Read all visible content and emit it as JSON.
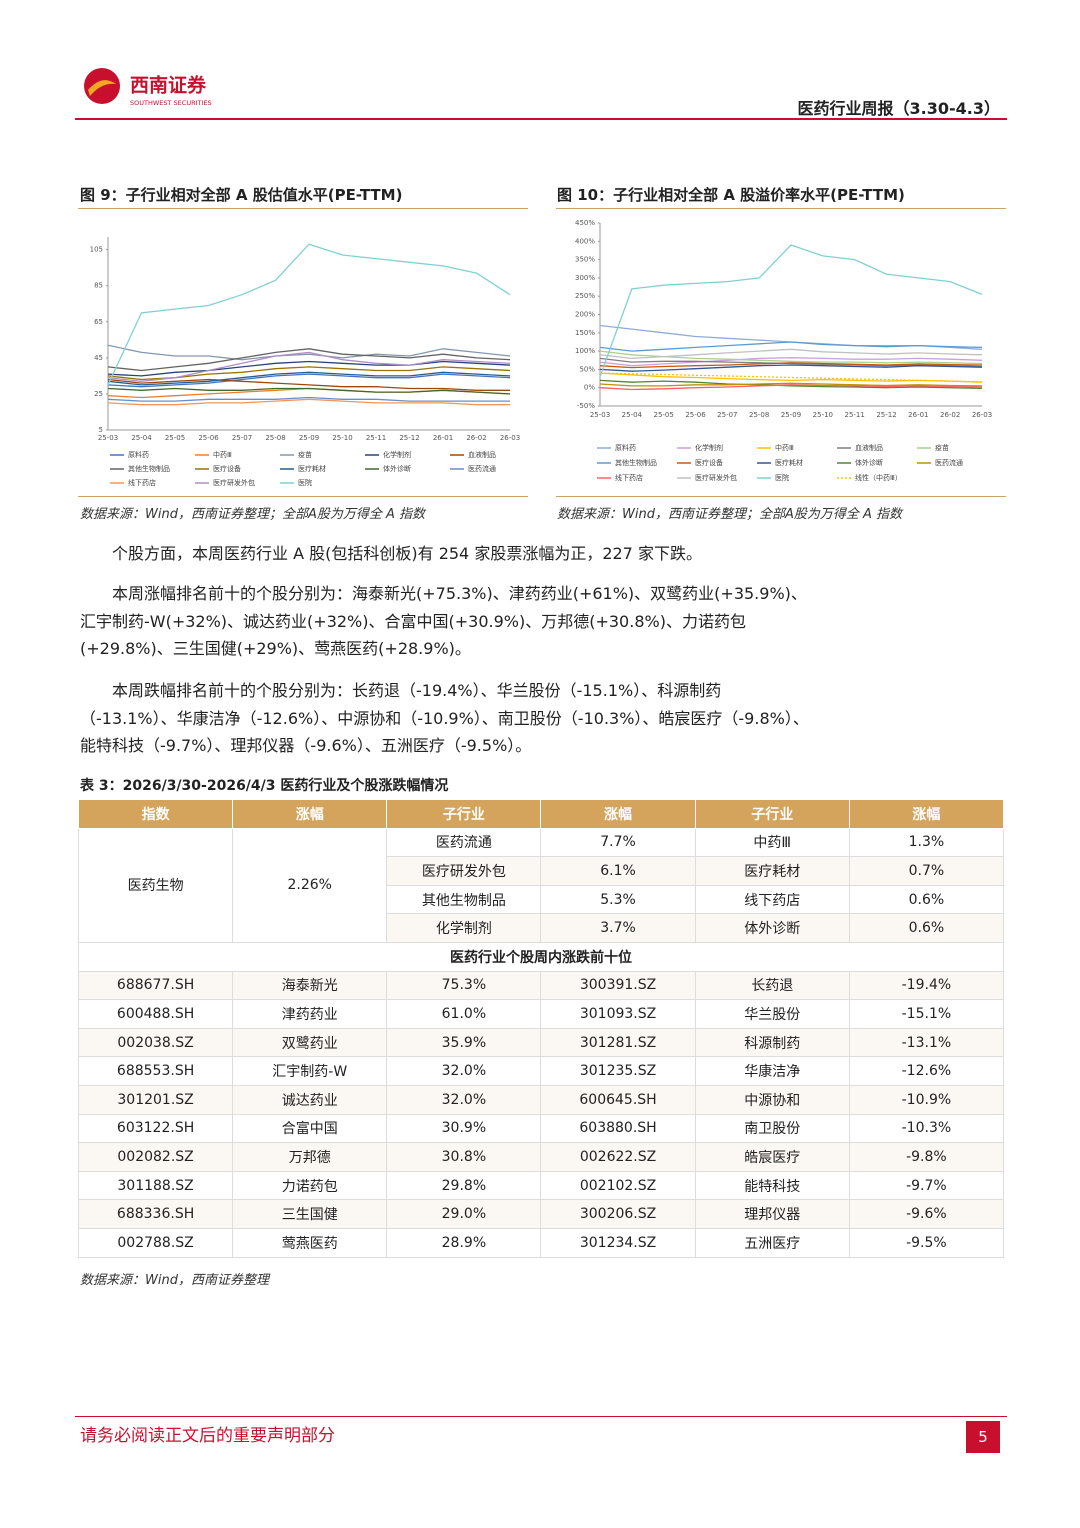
{
  "header": {
    "logo_cn": "西南证券",
    "logo_en": "SOUTHWEST SECURITIES",
    "report": "医药行业周报（3.30-4.3）"
  },
  "chart_data": [
    {
      "type": "line",
      "title": "图 9：子行业相对全部 A 股估值水平(PE-TTM)",
      "source": "数据来源：Wind，西南证券整理；全部A股为万得全 A 指数",
      "categories": [
        "25-03",
        "25-04",
        "25-05",
        "25-06",
        "25-07",
        "25-08",
        "25-09",
        "25-10",
        "25-11",
        "25-12",
        "26-01",
        "26-02",
        "26-03"
      ],
      "ylim": [
        5,
        112
      ],
      "yticks": [
        5,
        25,
        45,
        65,
        85,
        105
      ],
      "series": [
        {
          "name": "原料药",
          "color": "#4472c4",
          "values": [
            30,
            29,
            30,
            31,
            33,
            35,
            36,
            35,
            34,
            34,
            36,
            35,
            34
          ]
        },
        {
          "name": "中药Ⅲ",
          "color": "#ed7d31",
          "values": [
            24,
            23,
            24,
            25,
            26,
            27,
            28,
            27,
            26,
            26,
            27,
            26,
            25
          ]
        },
        {
          "name": "疫苗",
          "color": "#8497b0",
          "values": [
            52,
            48,
            46,
            46,
            44,
            46,
            47,
            45,
            47,
            46,
            50,
            48,
            46
          ]
        },
        {
          "name": "化学制剂",
          "color": "#264478",
          "values": [
            36,
            35,
            37,
            38,
            40,
            42,
            43,
            42,
            41,
            41,
            43,
            42,
            41
          ]
        },
        {
          "name": "血液制品",
          "color": "#9e480e",
          "values": [
            33,
            31,
            32,
            33,
            32,
            31,
            30,
            29,
            29,
            28,
            28,
            27,
            27
          ]
        },
        {
          "name": "其他生物制品",
          "color": "#636363",
          "values": [
            40,
            38,
            40,
            42,
            45,
            48,
            50,
            47,
            46,
            45,
            47,
            45,
            44
          ]
        },
        {
          "name": "医疗设备",
          "color": "#997300",
          "values": [
            35,
            33,
            34,
            36,
            37,
            39,
            40,
            39,
            38,
            38,
            40,
            39,
            38
          ]
        },
        {
          "name": "医疗耗材",
          "color": "#255e91",
          "values": [
            32,
            30,
            31,
            32,
            34,
            36,
            37,
            36,
            35,
            35,
            37,
            36,
            35
          ]
        },
        {
          "name": "体外诊断",
          "color": "#43682b",
          "values": [
            28,
            27,
            28,
            27,
            27,
            28,
            28,
            27,
            26,
            26,
            27,
            26,
            25
          ]
        },
        {
          "name": "医药流通",
          "color": "#698ed0",
          "values": [
            22,
            21,
            21,
            22,
            22,
            22,
            23,
            22,
            22,
            21,
            21,
            21,
            21
          ]
        },
        {
          "name": "线下药店",
          "color": "#f1975a",
          "values": [
            20,
            19,
            19,
            20,
            20,
            21,
            22,
            21,
            20,
            20,
            20,
            19,
            19
          ]
        },
        {
          "name": "医疗研发外包",
          "color": "#b08fc7",
          "values": [
            34,
            32,
            34,
            38,
            42,
            46,
            48,
            44,
            42,
            41,
            44,
            43,
            42
          ]
        },
        {
          "name": "医院",
          "color": "#7fd1d0",
          "values": [
            30,
            70,
            72,
            74,
            80,
            88,
            108,
            102,
            100,
            98,
            96,
            92,
            80
          ]
        }
      ]
    },
    {
      "type": "line",
      "title": "图 10：子行业相对全部 A 股溢价率水平(PE-TTM)",
      "source": "数据来源：Wind，西南证券整理；全部A股为万得全 A 指数",
      "categories": [
        "25-03",
        "25-04",
        "25-05",
        "25-06",
        "25-07",
        "25-08",
        "25-09",
        "25-10",
        "25-11",
        "25-12",
        "26-01",
        "26-02",
        "26-03"
      ],
      "ylim": [
        -50,
        450
      ],
      "yticks": [
        {
          "value": -50,
          "label": "-50%"
        },
        {
          "value": 0,
          "label": "0%"
        },
        {
          "value": 50,
          "label": "50%"
        },
        {
          "value": 100,
          "label": "100%"
        },
        {
          "value": 150,
          "label": "150%"
        },
        {
          "value": 200,
          "label": "200%"
        },
        {
          "value": 250,
          "label": "250%"
        },
        {
          "value": 300,
          "label": "300%"
        },
        {
          "value": 350,
          "label": "350%"
        },
        {
          "value": 400,
          "label": "400%"
        },
        {
          "value": 450,
          "label": "450%"
        }
      ],
      "series": [
        {
          "name": "原料药",
          "color": "#8faadc",
          "values": [
            170,
            160,
            150,
            140,
            135,
            130,
            125,
            120,
            115,
            115,
            115,
            110,
            105
          ]
        },
        {
          "name": "化学制剂",
          "color": "#c9a0dc",
          "values": [
            70,
            60,
            65,
            70,
            75,
            80,
            82,
            80,
            78,
            78,
            80,
            78,
            75
          ]
        },
        {
          "name": "中药Ⅲ",
          "color": "#ffc000",
          "values": [
            40,
            35,
            30,
            28,
            25,
            22,
            20,
            22,
            20,
            18,
            20,
            18,
            15
          ]
        },
        {
          "name": "血液制品",
          "color": "#7f7f7f",
          "values": [
            80,
            70,
            72,
            72,
            70,
            68,
            66,
            64,
            62,
            60,
            62,
            60,
            58
          ]
        },
        {
          "name": "疫苗",
          "color": "#a9d18e",
          "values": [
            100,
            90,
            85,
            80,
            78,
            75,
            72,
            70,
            70,
            68,
            70,
            68,
            66
          ]
        },
        {
          "name": "其他生物制品",
          "color": "#5b9bd5",
          "values": [
            110,
            100,
            105,
            110,
            115,
            120,
            125,
            118,
            115,
            112,
            115,
            112,
            110
          ]
        },
        {
          "name": "医疗设备",
          "color": "#c55a11",
          "values": [
            60,
            55,
            58,
            60,
            62,
            65,
            68,
            66,
            64,
            62,
            65,
            63,
            62
          ]
        },
        {
          "name": "医疗耗材",
          "color": "#2f5597",
          "values": [
            50,
            45,
            48,
            52,
            56,
            60,
            62,
            60,
            58,
            56,
            60,
            58,
            56
          ]
        },
        {
          "name": "体外诊断",
          "color": "#548235",
          "values": [
            20,
            15,
            18,
            15,
            10,
            8,
            5,
            3,
            2,
            0,
            2,
            0,
            -2
          ]
        },
        {
          "name": "医药流通",
          "color": "#bf9000",
          "values": [
            10,
            5,
            5,
            8,
            8,
            10,
            12,
            10,
            8,
            6,
            8,
            6,
            5
          ]
        },
        {
          "name": "线下药店",
          "color": "#ff6060",
          "values": [
            0,
            -5,
            -3,
            0,
            2,
            5,
            8,
            6,
            5,
            3,
            5,
            3,
            2
          ]
        },
        {
          "name": "医疗研发外包",
          "color": "#c0c0c0",
          "values": [
            90,
            80,
            85,
            90,
            95,
            100,
            105,
            98,
            95,
            92,
            95,
            92,
            90
          ]
        },
        {
          "name": "医院",
          "color": "#7fd1d0",
          "values": [
            30,
            270,
            280,
            285,
            290,
            300,
            390,
            360,
            350,
            310,
            300,
            290,
            255
          ]
        },
        {
          "name": "线性（中药Ⅲ）",
          "color": "#ffc000",
          "dashed": true,
          "values": [
            40,
            38,
            36,
            34,
            32,
            30,
            28,
            26,
            24,
            22,
            20,
            18,
            16
          ]
        }
      ]
    }
  ],
  "paragraphs": [
    "个股方面，本周医药行业 A 股(包括科创板)有 254 家股票涨幅为正，227 家下跌。",
    "本周涨幅排名前十的个股分别为：海泰新光(+75.3%)、津药药业(+61%)、双鹭药业(+35.9%)、汇宇制药-W(+32%)、诚达药业(+32%)、合富中国(+30.9%)、万邦德(+30.8%)、力诺药包(+29.8%)、三生国健(+29%)、莺燕医药(+28.9%)。",
    "本周跌幅排名前十的个股分别为：长药退（-19.4%）、华兰股份（-15.1%）、科源制药（-13.1%）、华康洁净（-12.6%）、中源协和（-10.9%）、南卫股份（-10.3%）、皓宸医疗（-9.8%）、能特科技（-9.7%）、理邦仪器（-9.6%）、五洲医疗（-9.5%）。"
  ],
  "table": {
    "caption": "表 3：2026/3/30-2026/4/3 医药行业及个股涨跌幅情况",
    "header": [
      "指数",
      "涨幅",
      "子行业",
      "涨幅",
      "子行业",
      "涨幅"
    ],
    "index_name": "医药生物",
    "index_change": "2.26%",
    "sub_rows": [
      [
        "医药流通",
        "7.7%",
        "中药Ⅲ",
        "1.3%"
      ],
      [
        "医疗研发外包",
        "6.1%",
        "医疗耗材",
        "0.7%"
      ],
      [
        "其他生物制品",
        "5.3%",
        "线下药店",
        "0.6%"
      ],
      [
        "化学制剂",
        "3.7%",
        "体外诊断",
        "0.6%"
      ]
    ],
    "section_title": "医药行业个股周内涨跌前十位",
    "rows": [
      [
        "688677.SH",
        "海泰新光",
        "75.3%",
        "300391.SZ",
        "长药退",
        "-19.4%"
      ],
      [
        "600488.SH",
        "津药药业",
        "61.0%",
        "301093.SZ",
        "华兰股份",
        "-15.1%"
      ],
      [
        "002038.SZ",
        "双鹭药业",
        "35.9%",
        "301281.SZ",
        "科源制药",
        "-13.1%"
      ],
      [
        "688553.SH",
        "汇宇制药-W",
        "32.0%",
        "301235.SZ",
        "华康洁净",
        "-12.6%"
      ],
      [
        "301201.SZ",
        "诚达药业",
        "32.0%",
        "600645.SH",
        "中源协和",
        "-10.9%"
      ],
      [
        "603122.SH",
        "合富中国",
        "30.9%",
        "603880.SH",
        "南卫股份",
        "-10.3%"
      ],
      [
        "002082.SZ",
        "万邦德",
        "30.8%",
        "002622.SZ",
        "皓宸医疗",
        "-9.8%"
      ],
      [
        "301188.SZ",
        "力诺药包",
        "29.8%",
        "002102.SZ",
        "能特科技",
        "-9.7%"
      ],
      [
        "688336.SH",
        "三生国健",
        "29.0%",
        "300206.SZ",
        "理邦仪器",
        "-9.6%"
      ],
      [
        "002788.SZ",
        "莺燕医药",
        "28.9%",
        "301234.SZ",
        "五洲医疗",
        "-9.5%"
      ]
    ],
    "source": "数据来源：Wind，西南证券整理"
  },
  "footer": {
    "disclaimer": "请务必阅读正文后的重要声明部分",
    "page": "5"
  }
}
